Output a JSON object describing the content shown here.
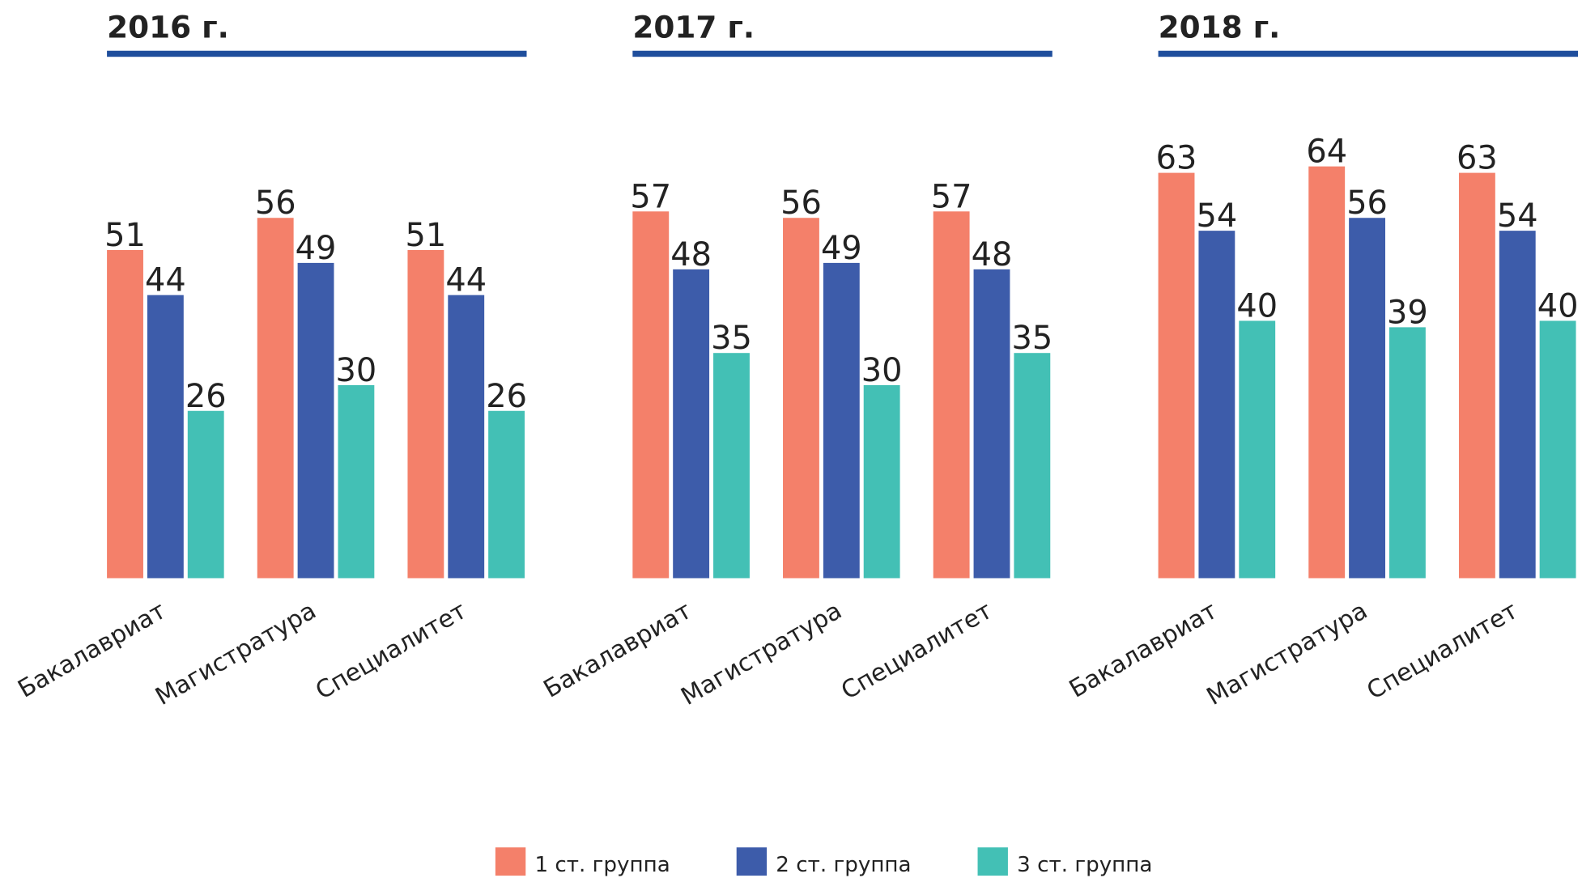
{
  "chart_data": [
    {
      "type": "bar",
      "title": "2016 г.",
      "categories": [
        "Бакалавриат",
        "Магистратура",
        "Специалитет"
      ],
      "series": [
        {
          "name": "1 ст. группа",
          "color": "#f4806a",
          "values": [
            51,
            56,
            51
          ]
        },
        {
          "name": "2 ст. группа",
          "color": "#3d5caa",
          "values": [
            44,
            49,
            44
          ]
        },
        {
          "name": "3 ст. группа",
          "color": "#43c0b5",
          "values": [
            26,
            30,
            26
          ]
        }
      ]
    },
    {
      "type": "bar",
      "title": "2017 г.",
      "categories": [
        "Бакалавриат",
        "Магистратура",
        "Специалитет"
      ],
      "series": [
        {
          "name": "1 ст. группа",
          "color": "#f4806a",
          "values": [
            57,
            56,
            57
          ]
        },
        {
          "name": "2 ст. группа",
          "color": "#3d5caa",
          "values": [
            48,
            49,
            48
          ]
        },
        {
          "name": "3 ст. группа",
          "color": "#43c0b5",
          "values": [
            35,
            30,
            35
          ]
        }
      ]
    },
    {
      "type": "bar",
      "title": "2018 г.",
      "categories": [
        "Бакалавриат",
        "Магистратура",
        "Специалитет"
      ],
      "series": [
        {
          "name": "1 ст. группа",
          "color": "#f4806a",
          "values": [
            63,
            64,
            63
          ]
        },
        {
          "name": "2 ст. группа",
          "color": "#3d5caa",
          "values": [
            54,
            56,
            54
          ]
        },
        {
          "name": "3 ст. группа",
          "color": "#43c0b5",
          "values": [
            40,
            39,
            40
          ]
        }
      ]
    }
  ]
}
